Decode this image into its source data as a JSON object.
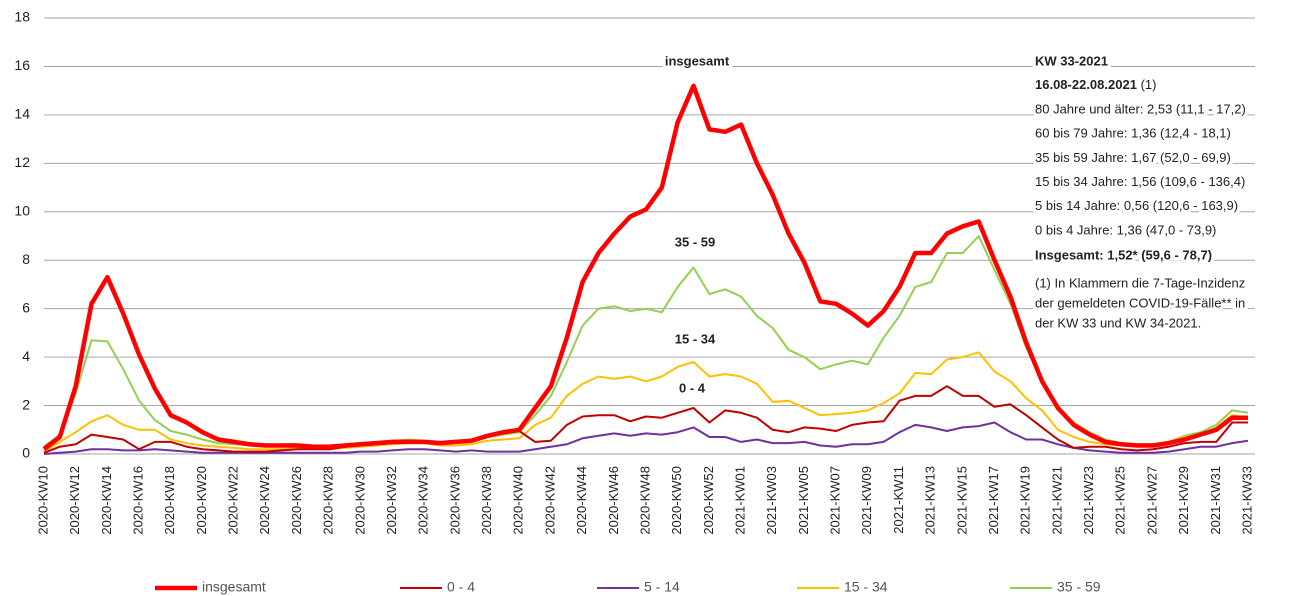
{
  "chart_data": {
    "type": "line",
    "categories": [
      "2020-KW10",
      null,
      "2020-KW12",
      null,
      "2020-KW14",
      null,
      "2020-KW16",
      null,
      "2020-KW18",
      null,
      "2020-KW20",
      null,
      "2020-KW22",
      null,
      "2020-KW24",
      null,
      "2020-KW26",
      null,
      "2020-KW28",
      null,
      "2020-KW30",
      null,
      "2020-KW32",
      null,
      "2020-KW34",
      null,
      "2020-KW36",
      null,
      "2020-KW38",
      null,
      "2020-KW40",
      null,
      "2020-KW42",
      null,
      "2020-KW44",
      null,
      "2020-KW46",
      null,
      "2020-KW48",
      null,
      "2020-KW50",
      null,
      "2020-KW52",
      null,
      "2021-KW01",
      null,
      "2021-KW03",
      null,
      "2021-KW05",
      null,
      "2021-KW07",
      null,
      "2021-KW09",
      null,
      "2021-KW11",
      null,
      "2021-KW13",
      null,
      "2021-KW15",
      null,
      "2021-KW17",
      null,
      "2021-KW19",
      null,
      "2021-KW21",
      null,
      "2021-KW23",
      null,
      "2021-KW25",
      null,
      "2021-KW27",
      null,
      "2021-KW29",
      null,
      "2021-KW31",
      null,
      "2021-KW33"
    ],
    "series": [
      {
        "name": "insgesamt",
        "color": "#ff0000",
        "values": [
          0.2,
          0.7,
          2.8,
          6.2,
          7.3,
          5.8,
          4.1,
          2.7,
          1.6,
          1.3,
          0.9,
          0.6,
          0.5,
          0.4,
          0.35,
          0.35,
          0.35,
          0.3,
          0.3,
          0.35,
          0.4,
          0.45,
          0.5,
          0.5,
          0.5,
          0.45,
          0.5,
          0.55,
          0.75,
          0.9,
          1.0,
          1.9,
          2.8,
          4.8,
          7.1,
          8.3,
          9.1,
          9.8,
          10.1,
          11.0,
          13.7,
          15.2,
          13.4,
          13.3,
          13.6,
          12.0,
          10.7,
          9.1,
          7.9,
          6.3,
          6.2,
          5.8,
          5.3,
          5.9,
          6.9,
          8.3,
          8.3,
          9.1,
          9.4,
          9.6,
          8.0,
          6.5,
          4.6,
          3.0,
          1.9,
          1.2,
          0.8,
          0.5,
          0.4,
          0.35,
          0.35,
          0.45,
          0.6,
          0.8,
          1.0,
          1.5,
          1.5
        ]
      },
      {
        "name": "0 - 4",
        "color": "#c00000",
        "values": [
          0.05,
          0.3,
          0.4,
          0.8,
          0.7,
          0.6,
          0.2,
          0.5,
          0.5,
          0.3,
          0.2,
          0.15,
          0.1,
          0.1,
          0.1,
          0.15,
          0.2,
          0.2,
          0.2,
          0.3,
          0.35,
          0.4,
          0.45,
          0.5,
          0.5,
          0.45,
          0.5,
          0.55,
          0.8,
          0.85,
          0.95,
          0.5,
          0.55,
          1.2,
          1.55,
          1.6,
          1.6,
          1.35,
          1.55,
          1.5,
          1.7,
          1.9,
          1.3,
          1.8,
          1.7,
          1.5,
          1.0,
          0.9,
          1.1,
          1.05,
          0.95,
          1.2,
          1.3,
          1.35,
          2.2,
          2.4,
          2.4,
          2.8,
          2.4,
          2.4,
          1.95,
          2.05,
          1.6,
          1.1,
          0.6,
          0.25,
          0.3,
          0.3,
          0.2,
          0.15,
          0.2,
          0.3,
          0.45,
          0.5,
          0.5,
          1.3,
          1.3
        ]
      },
      {
        "name": "5 - 14",
        "color": "#7030a0",
        "values": [
          0,
          0.05,
          0.1,
          0.2,
          0.2,
          0.15,
          0.15,
          0.2,
          0.15,
          0.1,
          0.05,
          0.05,
          0.05,
          0.05,
          0.05,
          0.05,
          0.05,
          0.05,
          0.05,
          0.05,
          0.1,
          0.1,
          0.15,
          0.2,
          0.2,
          0.15,
          0.1,
          0.15,
          0.1,
          0.1,
          0.1,
          0.2,
          0.3,
          0.4,
          0.65,
          0.75,
          0.85,
          0.75,
          0.85,
          0.8,
          0.9,
          1.1,
          0.7,
          0.7,
          0.5,
          0.6,
          0.45,
          0.45,
          0.5,
          0.35,
          0.3,
          0.4,
          0.4,
          0.5,
          0.9,
          1.2,
          1.1,
          0.95,
          1.1,
          1.15,
          1.3,
          0.9,
          0.6,
          0.6,
          0.4,
          0.25,
          0.15,
          0.1,
          0.05,
          0.05,
          0.05,
          0.1,
          0.2,
          0.3,
          0.3,
          0.45,
          0.55
        ]
      },
      {
        "name": "15 - 34",
        "color": "#ffc000",
        "values": [
          0.1,
          0.5,
          0.9,
          1.35,
          1.6,
          1.2,
          1.0,
          1.0,
          0.6,
          0.45,
          0.35,
          0.3,
          0.25,
          0.2,
          0.2,
          0.2,
          0.25,
          0.25,
          0.2,
          0.25,
          0.3,
          0.35,
          0.4,
          0.45,
          0.45,
          0.35,
          0.35,
          0.4,
          0.55,
          0.6,
          0.65,
          1.2,
          1.5,
          2.4,
          2.9,
          3.2,
          3.1,
          3.2,
          3.0,
          3.2,
          3.6,
          3.8,
          3.2,
          3.3,
          3.2,
          2.9,
          2.15,
          2.2,
          1.9,
          1.6,
          1.65,
          1.7,
          1.8,
          2.1,
          2.5,
          3.35,
          3.3,
          3.9,
          4.0,
          4.2,
          3.4,
          3.0,
          2.3,
          1.8,
          1.0,
          0.7,
          0.5,
          0.4,
          0.35,
          0.4,
          0.4,
          0.5,
          0.7,
          0.8,
          1.1,
          1.6,
          1.5
        ]
      },
      {
        "name": "35 - 59",
        "color": "#92d050",
        "values": [
          0.3,
          0.8,
          2.5,
          4.7,
          4.65,
          3.5,
          2.2,
          1.4,
          0.95,
          0.8,
          0.6,
          0.45,
          0.4,
          0.35,
          0.35,
          0.4,
          0.4,
          0.35,
          0.3,
          0.4,
          0.45,
          0.5,
          0.55,
          0.6,
          0.55,
          0.5,
          0.55,
          0.6,
          0.7,
          0.8,
          0.9,
          1.6,
          2.4,
          3.8,
          5.3,
          6.0,
          6.1,
          5.9,
          6.0,
          5.85,
          6.9,
          7.7,
          6.6,
          6.8,
          6.5,
          5.7,
          5.2,
          4.3,
          4.0,
          3.5,
          3.7,
          3.85,
          3.7,
          4.8,
          5.7,
          6.9,
          7.1,
          8.3,
          8.3,
          9.0,
          7.6,
          6.2,
          4.4,
          3.0,
          1.95,
          1.3,
          0.9,
          0.6,
          0.45,
          0.4,
          0.4,
          0.5,
          0.75,
          0.9,
          1.2,
          1.8,
          1.7
        ]
      }
    ],
    "ylim": [
      0,
      18
    ],
    "yticks": [
      0,
      2,
      4,
      6,
      8,
      10,
      12,
      14,
      16,
      18
    ],
    "grid": true,
    "legend": "bottom",
    "annotations": [
      "insgesamt",
      "35 - 59",
      "15 - 34",
      "0 - 4"
    ],
    "side_panel": {
      "title": "KW 33-2021",
      "period": "16.08-22.08.2021",
      "period_note": "(1)",
      "lines": [
        "80 Jahre und älter: 2,53 (11,1 - 17,2)",
        "60 bis 79 Jahre: 1,36 (12,4 - 18,1)",
        "35 bis 59 Jahre: 1,67 (52,0 - 69,9)",
        "15 bis 34 Jahre: 1,56 (109,6 -  136,4)",
        "5 bis 14 Jahre: 0,56 (120,6 - 163,9)",
        "0 bis 4 Jahre: 1,36 (47,0 - 73,9)"
      ],
      "total": "Insgesamt: 1,52* (59,6 - 78,7)",
      "footnote": [
        "(1) In Klammern die 7-Tage-Inzidenz",
        "der gemeldeten COVID-19-Fälle** in",
        "der KW 33 und KW 34-2021."
      ]
    }
  }
}
